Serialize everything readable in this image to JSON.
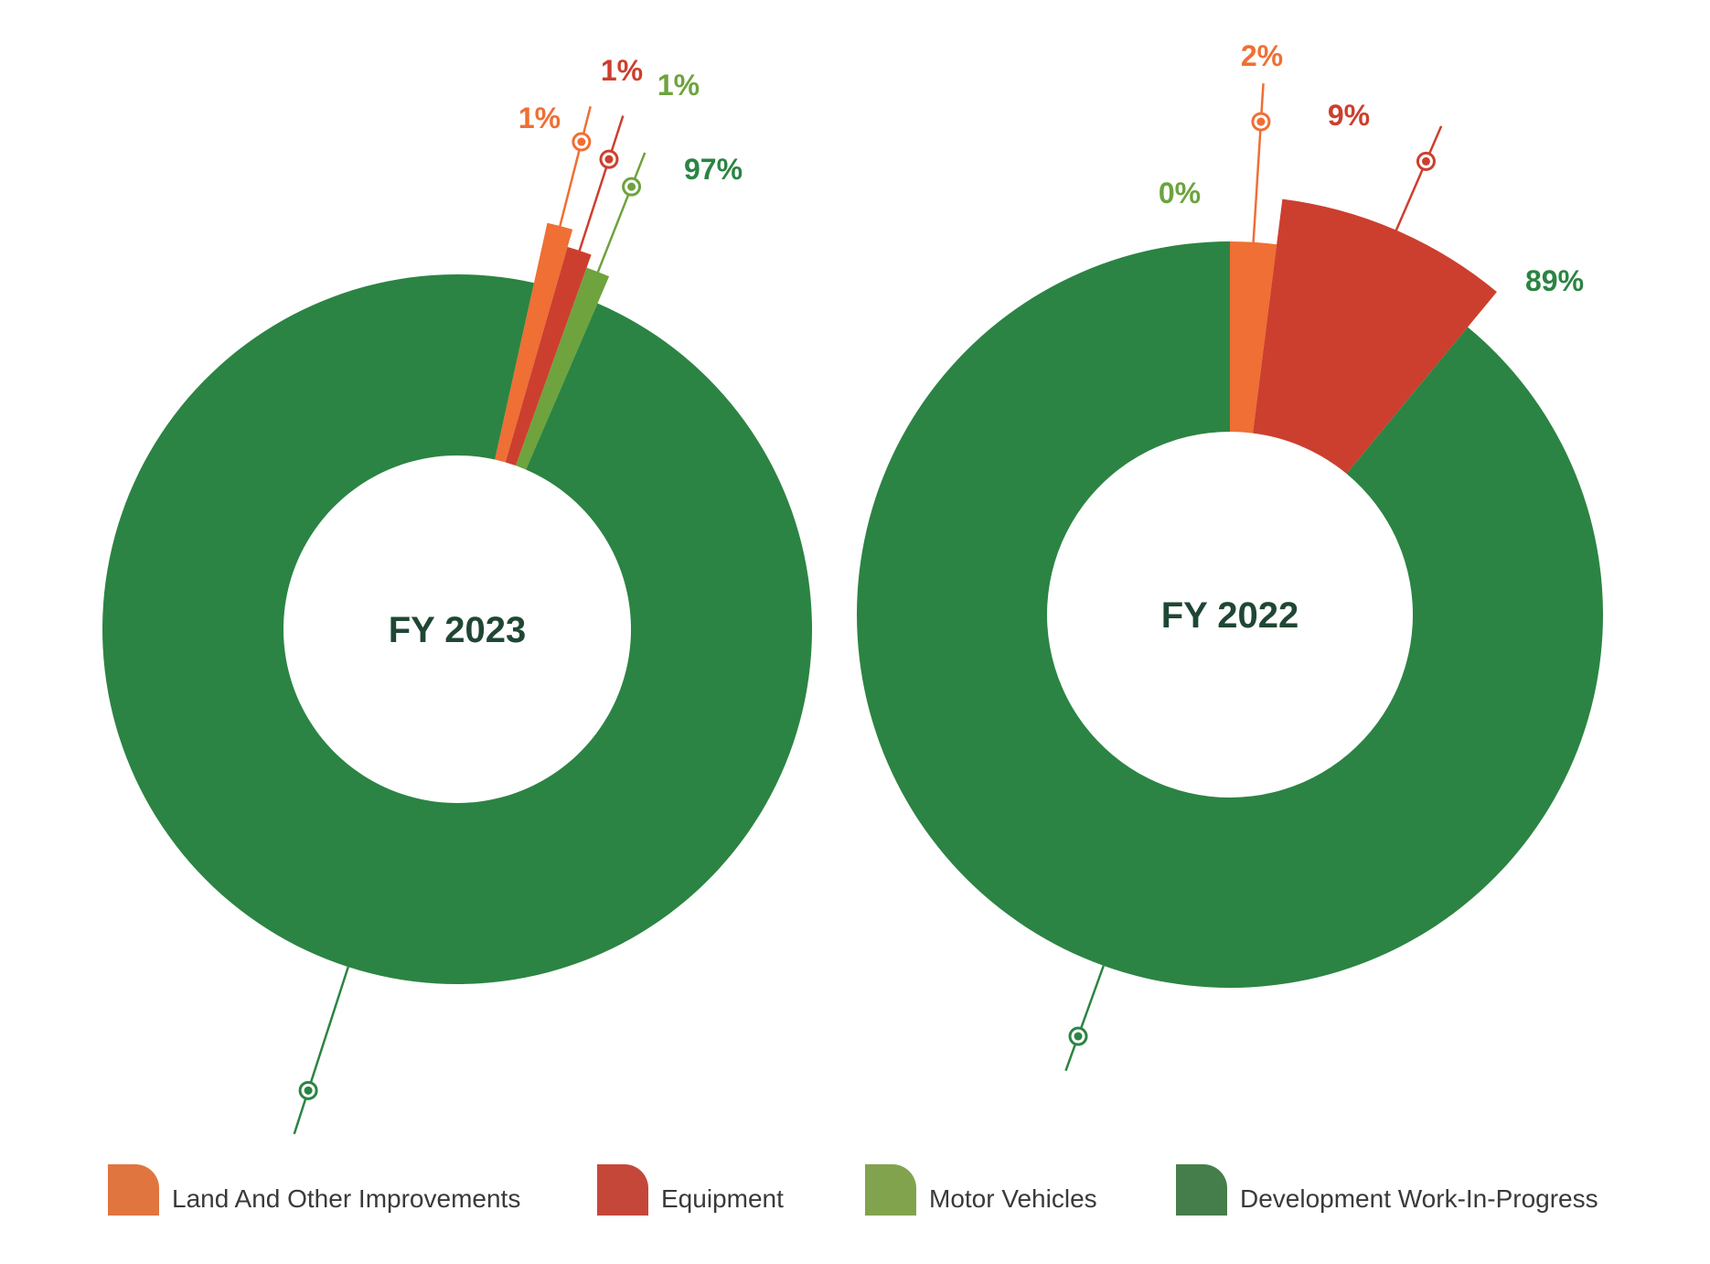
{
  "colors": {
    "land": "#ef6f34",
    "equipment": "#cc3f2e",
    "vehicles": "#6ea33e",
    "dev": "#2b8443",
    "label_dark": "#1f4734"
  },
  "legend": [
    {
      "label": "Land And Other Improvements",
      "color": "#e07540"
    },
    {
      "label": "Equipment",
      "color": "#c4473a"
    },
    {
      "label": "Motor Vehicles",
      "color": "#82a34e"
    },
    {
      "label": "Development Work-In-Progress",
      "color": "#457e4a"
    }
  ],
  "chart_data": [
    {
      "type": "pie",
      "donut": true,
      "center_label": "FY 2023",
      "categories": [
        "Land And Other Improvements",
        "Equipment",
        "Motor Vehicles",
        "Development Work-In-Progress"
      ],
      "values": [
        1,
        1,
        1,
        97
      ],
      "labels": [
        "1%",
        "1%",
        "1%",
        "97%"
      ]
    },
    {
      "type": "pie",
      "donut": true,
      "center_label": "FY 2022",
      "categories": [
        "Land And Other Improvements",
        "Equipment",
        "Motor Vehicles",
        "Development Work-In-Progress"
      ],
      "values": [
        2,
        9,
        0,
        89
      ],
      "labels": [
        "2%",
        "9%",
        "0%",
        "89%"
      ]
    }
  ]
}
